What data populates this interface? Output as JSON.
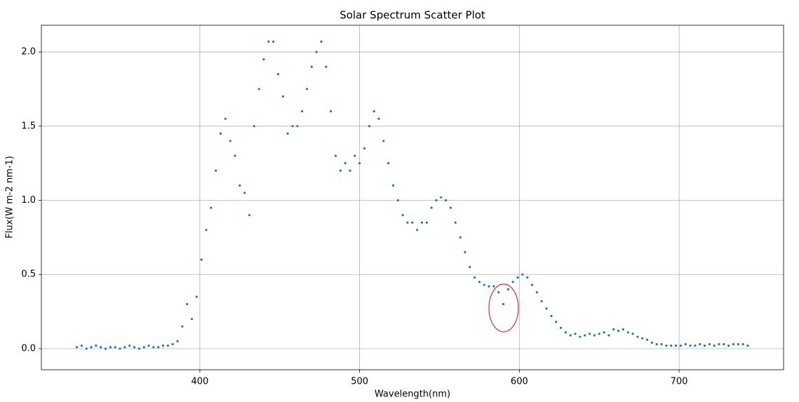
{
  "chart_data": {
    "type": "scatter",
    "title": "Solar Spectrum Scatter Plot",
    "x_label": "Wavelength(nm)",
    "y_label": "Flux(W m-2 nm-1)",
    "color": "#1f77b4",
    "grid": true,
    "xlim": [
      300.8,
      765.4
    ],
    "ylim": [
      -0.142,
      2.18
    ],
    "xticks": [
      400,
      500,
      600,
      700
    ],
    "yticks": [
      {
        "value": 0,
        "label": "0.0"
      },
      0.5,
      {
        "value": 1,
        "label": "1.0"
      },
      1.5,
      {
        "value": 2,
        "label": "2.0"
      }
    ],
    "x": [
      323,
      326,
      329,
      332,
      335,
      338,
      341,
      344,
      347,
      350,
      353,
      356,
      359,
      362,
      365,
      368,
      371,
      374,
      377,
      380,
      383,
      386,
      389,
      392,
      395,
      398,
      401,
      404,
      407,
      410,
      413,
      416,
      419,
      422,
      425,
      428,
      431,
      434,
      437,
      440,
      443,
      446,
      449,
      452,
      455,
      458,
      461,
      464,
      467,
      470,
      473,
      476,
      479,
      482,
      485,
      488,
      491,
      494,
      497,
      500,
      503,
      506,
      509,
      512,
      515,
      518,
      521,
      524,
      527,
      530,
      533,
      536,
      539,
      542,
      545,
      548,
      551,
      554,
      557,
      560,
      563,
      566,
      569,
      572,
      575,
      578,
      581,
      584,
      587,
      590,
      593,
      596,
      599,
      602,
      605,
      608,
      611,
      614,
      617,
      620,
      623,
      626,
      629,
      632,
      635,
      638,
      641,
      644,
      647,
      650,
      653,
      656,
      659,
      662,
      665,
      668,
      671,
      674,
      677,
      680,
      683,
      686,
      689,
      692,
      695,
      698,
      701,
      704,
      707,
      710,
      713,
      716,
      719,
      722,
      725,
      728,
      731,
      734,
      737,
      740,
      743
    ],
    "y": [
      0.01,
      0.02,
      0.0,
      0.01,
      0.02,
      0.01,
      0.0,
      0.01,
      0.01,
      0.0,
      0.01,
      0.02,
      0.01,
      0.0,
      0.01,
      0.02,
      0.01,
      0.01,
      0.02,
      0.02,
      0.03,
      0.05,
      0.15,
      0.3,
      0.2,
      0.35,
      0.6,
      0.8,
      0.95,
      1.2,
      1.45,
      1.55,
      1.4,
      1.3,
      1.1,
      1.05,
      0.9,
      1.5,
      1.75,
      1.95,
      2.07,
      2.07,
      1.85,
      1.7,
      1.45,
      1.5,
      1.5,
      1.6,
      1.75,
      1.9,
      2.0,
      2.07,
      1.9,
      1.6,
      1.3,
      1.2,
      1.25,
      1.2,
      1.3,
      1.25,
      1.35,
      1.5,
      1.6,
      1.55,
      1.4,
      1.25,
      1.1,
      1.0,
      0.9,
      0.85,
      0.85,
      0.8,
      0.85,
      0.85,
      0.95,
      1.0,
      1.02,
      1.0,
      0.95,
      0.85,
      0.75,
      0.65,
      0.55,
      0.48,
      0.45,
      0.43,
      0.42,
      0.42,
      0.38,
      0.3,
      0.4,
      0.45,
      0.48,
      0.5,
      0.48,
      0.43,
      0.38,
      0.32,
      0.27,
      0.22,
      0.18,
      0.14,
      0.11,
      0.09,
      0.1,
      0.08,
      0.09,
      0.1,
      0.09,
      0.1,
      0.11,
      0.09,
      0.13,
      0.12,
      0.13,
      0.11,
      0.1,
      0.08,
      0.07,
      0.06,
      0.04,
      0.03,
      0.03,
      0.02,
      0.02,
      0.02,
      0.02,
      0.03,
      0.02,
      0.02,
      0.03,
      0.02,
      0.03,
      0.02,
      0.03,
      0.03,
      0.02,
      0.03,
      0.03,
      0.03,
      0.02
    ]
  }
}
